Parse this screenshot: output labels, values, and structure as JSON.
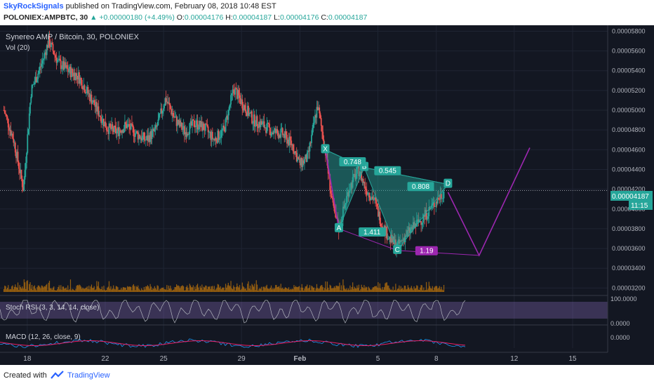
{
  "header": {
    "author": "SkyRockSignals",
    "published": "published on TradingView.com, February 08, 2018 10:48 EST",
    "symbol": "POLONIEX:AMPBTC, 30",
    "change": "▲ +0.00000180 (+4.49%)",
    "o_label": "O:",
    "o_value": "0.00004176",
    "h_label": "H:",
    "h_value": "0.00004187",
    "l_label": "L:",
    "l_value": "0.00004176",
    "c_label": "C:",
    "c_value": "0.00004187"
  },
  "chart": {
    "title": "Synereo AMP / Bitcoin, 30, POLONIEX",
    "vol_label": "Vol (20)",
    "stoch_label": "Stoch RSI (3, 3, 14, 14, close)",
    "macd_label": "MACD (12, 26, close, 9)",
    "last_price": "0.00004187",
    "countdown": "11:15",
    "stoch_ticks": [
      "100.0000",
      "0.0000"
    ],
    "macd_tick": "0.0000",
    "colors": {
      "background": "#131722",
      "up": "#26a69a",
      "down": "#ef5350",
      "pattern": "#26a69a",
      "projection": "#9c27b0",
      "volume": "#ff9800",
      "stoch": "#9575cd",
      "macd": "#2196f3",
      "signal": "#e91e63"
    }
  },
  "chart_data": {
    "type": "candlestick",
    "title": "Synereo AMP / Bitcoin, 30, POLONIEX",
    "y_ticks": [
      "0.00005800",
      "0.00005600",
      "0.00005400",
      "0.00005200",
      "0.00005000",
      "0.00004800",
      "0.00004600",
      "0.00004400",
      "0.00004200",
      "0.00004000",
      "0.00003800",
      "0.00003600",
      "0.00003400",
      "0.00003200"
    ],
    "ylim": [
      3.16e-05,
      5.86e-05
    ],
    "x_ticks": [
      "18",
      "22",
      "25",
      "29",
      "Feb",
      "5",
      "8",
      "12",
      "15"
    ],
    "x_tick_days": [
      18,
      22,
      25,
      29,
      32,
      36,
      39,
      43,
      46
    ],
    "xlim_days": [
      16.6,
      47.8
    ],
    "price_path": [
      [
        16.8,
        5e-05
      ],
      [
        17.3,
        4.7e-05
      ],
      [
        17.8,
        4.2e-05
      ],
      [
        18.2,
        5.2e-05
      ],
      [
        18.7,
        5.45e-05
      ],
      [
        19.1,
        5.7e-05
      ],
      [
        19.6,
        5.48e-05
      ],
      [
        20.1,
        5.4e-05
      ],
      [
        20.6,
        5.35e-05
      ],
      [
        21.1,
        5.18e-05
      ],
      [
        21.6,
        5e-05
      ],
      [
        22.1,
        4.82e-05
      ],
      [
        22.6,
        4.78e-05
      ],
      [
        23.1,
        4.85e-05
      ],
      [
        23.6,
        4.76e-05
      ],
      [
        24.1,
        4.7e-05
      ],
      [
        24.6,
        4.8e-05
      ],
      [
        25.1,
        5.12e-05
      ],
      [
        25.6,
        4.9e-05
      ],
      [
        26.1,
        4.78e-05
      ],
      [
        26.6,
        4.87e-05
      ],
      [
        27.1,
        4.82e-05
      ],
      [
        27.6,
        4.7e-05
      ],
      [
        28.1,
        4.8e-05
      ],
      [
        28.6,
        5.22e-05
      ],
      [
        29.1,
        5.05e-05
      ],
      [
        29.6,
        4.9e-05
      ],
      [
        30.1,
        4.85e-05
      ],
      [
        30.6,
        4.78e-05
      ],
      [
        31.1,
        4.76e-05
      ],
      [
        31.6,
        4.65e-05
      ],
      [
        32.0,
        4.45e-05
      ],
      [
        32.4,
        4.52e-05
      ],
      [
        32.9,
        5.05e-05
      ],
      [
        33.3,
        4.6e-05
      ],
      [
        33.7,
        4e-05
      ],
      [
        34.0,
        3.8e-05
      ],
      [
        34.5,
        4.2e-05
      ],
      [
        35.0,
        4.4e-05
      ],
      [
        35.4,
        4.2e-05
      ],
      [
        35.8,
        4.1e-05
      ],
      [
        36.2,
        3.85e-05
      ],
      [
        36.6,
        3.7e-05
      ],
      [
        37.0,
        3.62e-05
      ],
      [
        37.5,
        3.75e-05
      ],
      [
        38.0,
        3.85e-05
      ],
      [
        38.5,
        3.95e-05
      ],
      [
        39.0,
        4.08e-05
      ],
      [
        39.4,
        4.18e-05
      ]
    ],
    "harmonic_pattern": {
      "points": [
        {
          "label": "X",
          "day": 33.3,
          "price": 4.6e-05
        },
        {
          "label": "A",
          "day": 34.0,
          "price": 3.8e-05
        },
        {
          "label": "B",
          "day": 35.3,
          "price": 4.42e-05
        },
        {
          "label": "C",
          "day": 37.0,
          "price": 3.58e-05
        },
        {
          "label": "D",
          "day": 39.6,
          "price": 4.25e-05
        }
      ],
      "ratios": [
        {
          "text": "0.748",
          "day": 34.7,
          "price": 4.46e-05
        },
        {
          "text": "0.545",
          "day": 36.5,
          "price": 4.37e-05
        },
        {
          "text": "0.808",
          "day": 38.2,
          "price": 4.21e-05
        },
        {
          "text": "1.411",
          "day": 35.7,
          "price": 3.75e-05
        },
        {
          "text": "1.19",
          "day": 38.5,
          "price": 3.56e-05
        }
      ]
    },
    "projection": [
      [
        39.6,
        4.17e-05
      ],
      [
        41.2,
        3.53e-05
      ],
      [
        43.8,
        4.62e-05
      ]
    ]
  }
}
